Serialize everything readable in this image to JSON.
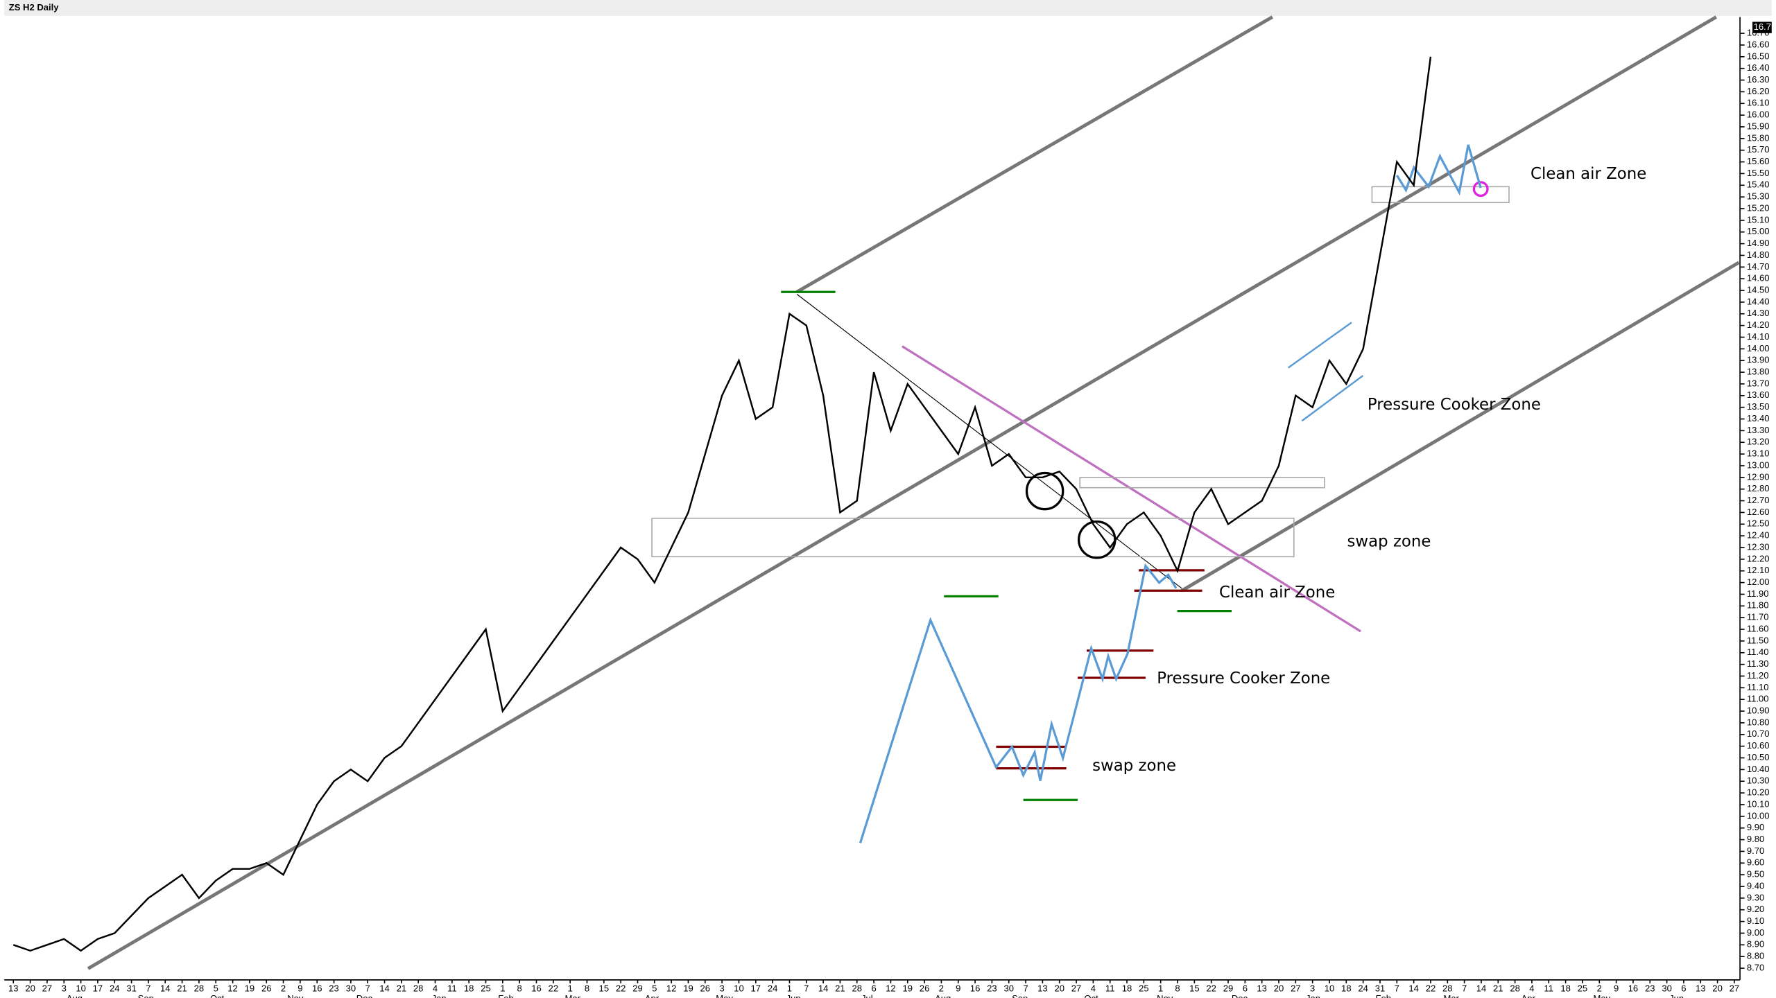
{
  "chart_data": {
    "type": "line",
    "title": "ZS H2 Daily",
    "categories": [
      "13",
      "20",
      "27",
      "3",
      "10",
      "17",
      "24",
      "31",
      "7",
      "14",
      "21",
      "28",
      "5",
      "12",
      "19",
      "26",
      "2",
      "9",
      "16",
      "23",
      "30",
      "7",
      "14",
      "21",
      "28",
      "4",
      "11",
      "18",
      "25",
      "1",
      "8",
      "16",
      "22",
      "1",
      "8",
      "15",
      "22",
      "29",
      "5",
      "12",
      "19",
      "26",
      "3",
      "10",
      "17",
      "24",
      "1",
      "7",
      "14",
      "21",
      "28",
      "6",
      "12",
      "19",
      "26",
      "2",
      "9",
      "16",
      "23",
      "30",
      "7",
      "13",
      "20",
      "27",
      "4",
      "11",
      "18",
      "25",
      "1",
      "8",
      "15",
      "22",
      "29",
      "6",
      "13",
      "20",
      "27",
      "3",
      "10",
      "18",
      "24",
      "31",
      "7",
      "14",
      "22",
      "28",
      "7",
      "14",
      "21",
      "28",
      "4",
      "11",
      "18",
      "25",
      "2",
      "9",
      "16",
      "23",
      "30",
      "6",
      "13",
      "20",
      "27"
    ],
    "months": [
      "Aug",
      "Sep",
      "Oct",
      "Nov",
      "Dec",
      "Jan",
      "Feb",
      "Mar",
      "Apr",
      "May",
      "Jun",
      "Jul",
      "Aug",
      "Sep",
      "Oct",
      "Nov",
      "Dec",
      "Jan",
      "Feb",
      "Mar",
      "Apr",
      "May",
      "Jun"
    ],
    "series": [
      {
        "name": "ZS H2",
        "color": "#000000",
        "values": [
          8.9,
          8.85,
          8.9,
          8.95,
          8.85,
          8.95,
          9.0,
          9.15,
          9.3,
          9.4,
          9.5,
          9.3,
          9.45,
          9.55,
          9.55,
          9.6,
          9.5,
          9.8,
          10.1,
          10.3,
          10.4,
          10.3,
          10.5,
          10.6,
          10.8,
          11.0,
          11.2,
          11.4,
          11.6,
          10.9,
          11.1,
          11.3,
          11.5,
          11.7,
          11.9,
          12.1,
          12.3,
          12.2,
          12.0,
          12.3,
          12.6,
          13.1,
          13.6,
          13.9,
          13.4,
          13.5,
          14.3,
          14.2,
          13.6,
          12.6,
          12.7,
          13.8,
          13.3,
          13.7,
          13.5,
          13.3,
          13.1,
          13.5,
          13.0,
          13.1,
          12.9,
          12.9,
          12.95,
          12.8,
          12.5,
          12.3,
          12.5,
          12.6,
          12.4,
          12.1,
          12.6,
          12.8,
          12.5,
          12.6,
          12.7,
          13.0,
          13.6,
          13.5,
          13.9,
          13.7,
          14.0,
          14.8,
          15.6,
          15.4,
          16.5,
          null,
          null,
          null,
          null,
          null,
          null,
          null,
          null,
          null,
          null,
          null,
          null,
          null,
          null,
          null,
          null,
          null,
          null
        ]
      }
    ],
    "ylim": [
      8.6,
      16.84
    ],
    "yticks": [
      {
        "value": 8.7,
        "label": "8.70"
      },
      {
        "value": 8.8,
        "label": "8.80"
      },
      {
        "value": 8.9,
        "label": "8.90"
      },
      {
        "value": 9.0,
        "label": "9.00"
      },
      {
        "value": 9.1,
        "label": "9.10"
      },
      {
        "value": 9.2,
        "label": "9.20"
      },
      {
        "value": 9.3,
        "label": "9.30"
      },
      {
        "value": 9.4,
        "label": "9.40"
      },
      {
        "value": 9.5,
        "label": "9.50"
      },
      {
        "value": 9.6,
        "label": "9.60"
      },
      {
        "value": 9.7,
        "label": "9.70"
      },
      {
        "value": 9.8,
        "label": "9.80"
      },
      {
        "value": 9.9,
        "label": "9.90"
      },
      {
        "value": 10.0,
        "label": "10.00"
      },
      {
        "value": 10.1,
        "label": "10.10"
      },
      {
        "value": 10.2,
        "label": "10.20"
      },
      {
        "value": 10.3,
        "label": "10.30"
      },
      {
        "value": 10.4,
        "label": "10.40"
      },
      {
        "value": 10.5,
        "label": "10.50"
      },
      {
        "value": 10.6,
        "label": "10.60"
      },
      {
        "value": 10.7,
        "label": "10.70"
      },
      {
        "value": 10.8,
        "label": "10.80"
      },
      {
        "value": 10.9,
        "label": "10.90"
      },
      {
        "value": 11.0,
        "label": "11.00"
      },
      {
        "value": 11.1,
        "label": "11.10"
      },
      {
        "value": 11.2,
        "label": "11.20"
      },
      {
        "value": 11.3,
        "label": "11.30"
      },
      {
        "value": 11.4,
        "label": "11.40"
      },
      {
        "value": 11.5,
        "label": "11.50"
      },
      {
        "value": 11.6,
        "label": "11.60"
      },
      {
        "value": 11.7,
        "label": "11.70"
      },
      {
        "value": 11.8,
        "label": "11.80"
      },
      {
        "value": 11.9,
        "label": "11.90"
      },
      {
        "value": 12.0,
        "label": "12.00"
      },
      {
        "value": 12.1,
        "label": "12.10"
      },
      {
        "value": 12.2,
        "label": "12.20"
      },
      {
        "value": 12.3,
        "label": "12.30"
      },
      {
        "value": 12.4,
        "label": "12.40"
      },
      {
        "value": 12.5,
        "label": "12.50"
      },
      {
        "value": 12.6,
        "label": "12.60"
      },
      {
        "value": 12.7,
        "label": "12.70"
      },
      {
        "value": 12.8,
        "label": "12.80"
      },
      {
        "value": 12.9,
        "label": "12.90"
      },
      {
        "value": 13.0,
        "label": "13.00"
      },
      {
        "value": 13.1,
        "label": "13.10"
      },
      {
        "value": 13.2,
        "label": "13.20"
      },
      {
        "value": 13.3,
        "label": "13.30"
      },
      {
        "value": 13.4,
        "label": "13.40"
      },
      {
        "value": 13.5,
        "label": "13.50"
      },
      {
        "value": 13.6,
        "label": "13.60"
      },
      {
        "value": 13.7,
        "label": "13.70"
      },
      {
        "value": 13.8,
        "label": "13.80"
      },
      {
        "value": 13.9,
        "label": "13.90"
      },
      {
        "value": 14.0,
        "label": "14.00"
      },
      {
        "value": 14.1,
        "label": "14.10"
      },
      {
        "value": 14.2,
        "label": "14.20"
      },
      {
        "value": 14.3,
        "label": "14.30"
      },
      {
        "value": 14.4,
        "label": "14.40"
      },
      {
        "value": 14.5,
        "label": "14.50"
      },
      {
        "value": 14.6,
        "label": "14.60"
      },
      {
        "value": 14.7,
        "label": "14.70"
      },
      {
        "value": 14.8,
        "label": "14.80"
      },
      {
        "value": 14.9,
        "label": "14.90"
      },
      {
        "value": 15.0,
        "label": "15.00"
      },
      {
        "value": 15.1,
        "label": "15.10"
      },
      {
        "value": 15.2,
        "label": "15.20"
      },
      {
        "value": 15.3,
        "label": "15.30"
      },
      {
        "value": 15.4,
        "label": "15.40"
      },
      {
        "value": 15.5,
        "label": "15.50"
      },
      {
        "value": 15.6,
        "label": "15.60"
      },
      {
        "value": 15.7,
        "label": "15.70"
      },
      {
        "value": 15.8,
        "label": "15.80"
      },
      {
        "value": 15.9,
        "label": "15.90"
      },
      {
        "value": 16.0,
        "label": "16.00"
      },
      {
        "value": 16.1,
        "label": "16.10"
      },
      {
        "value": 16.2,
        "label": "16.20"
      },
      {
        "value": 16.3,
        "label": "16.30"
      },
      {
        "value": 16.4,
        "label": "16.40"
      },
      {
        "value": 16.5,
        "label": "16.50"
      },
      {
        "value": 16.6,
        "label": "16.60"
      },
      {
        "value": 16.7,
        "label": "16.70"
      }
    ],
    "last_price": {
      "value": 16.75,
      "label": "16.75"
    },
    "annotations": [
      "Clean air Zone",
      "Pressure Cooker Zone",
      "swap zone",
      "Clean air Zone",
      "Pressure Cooker Zone",
      "swap zone"
    ]
  }
}
